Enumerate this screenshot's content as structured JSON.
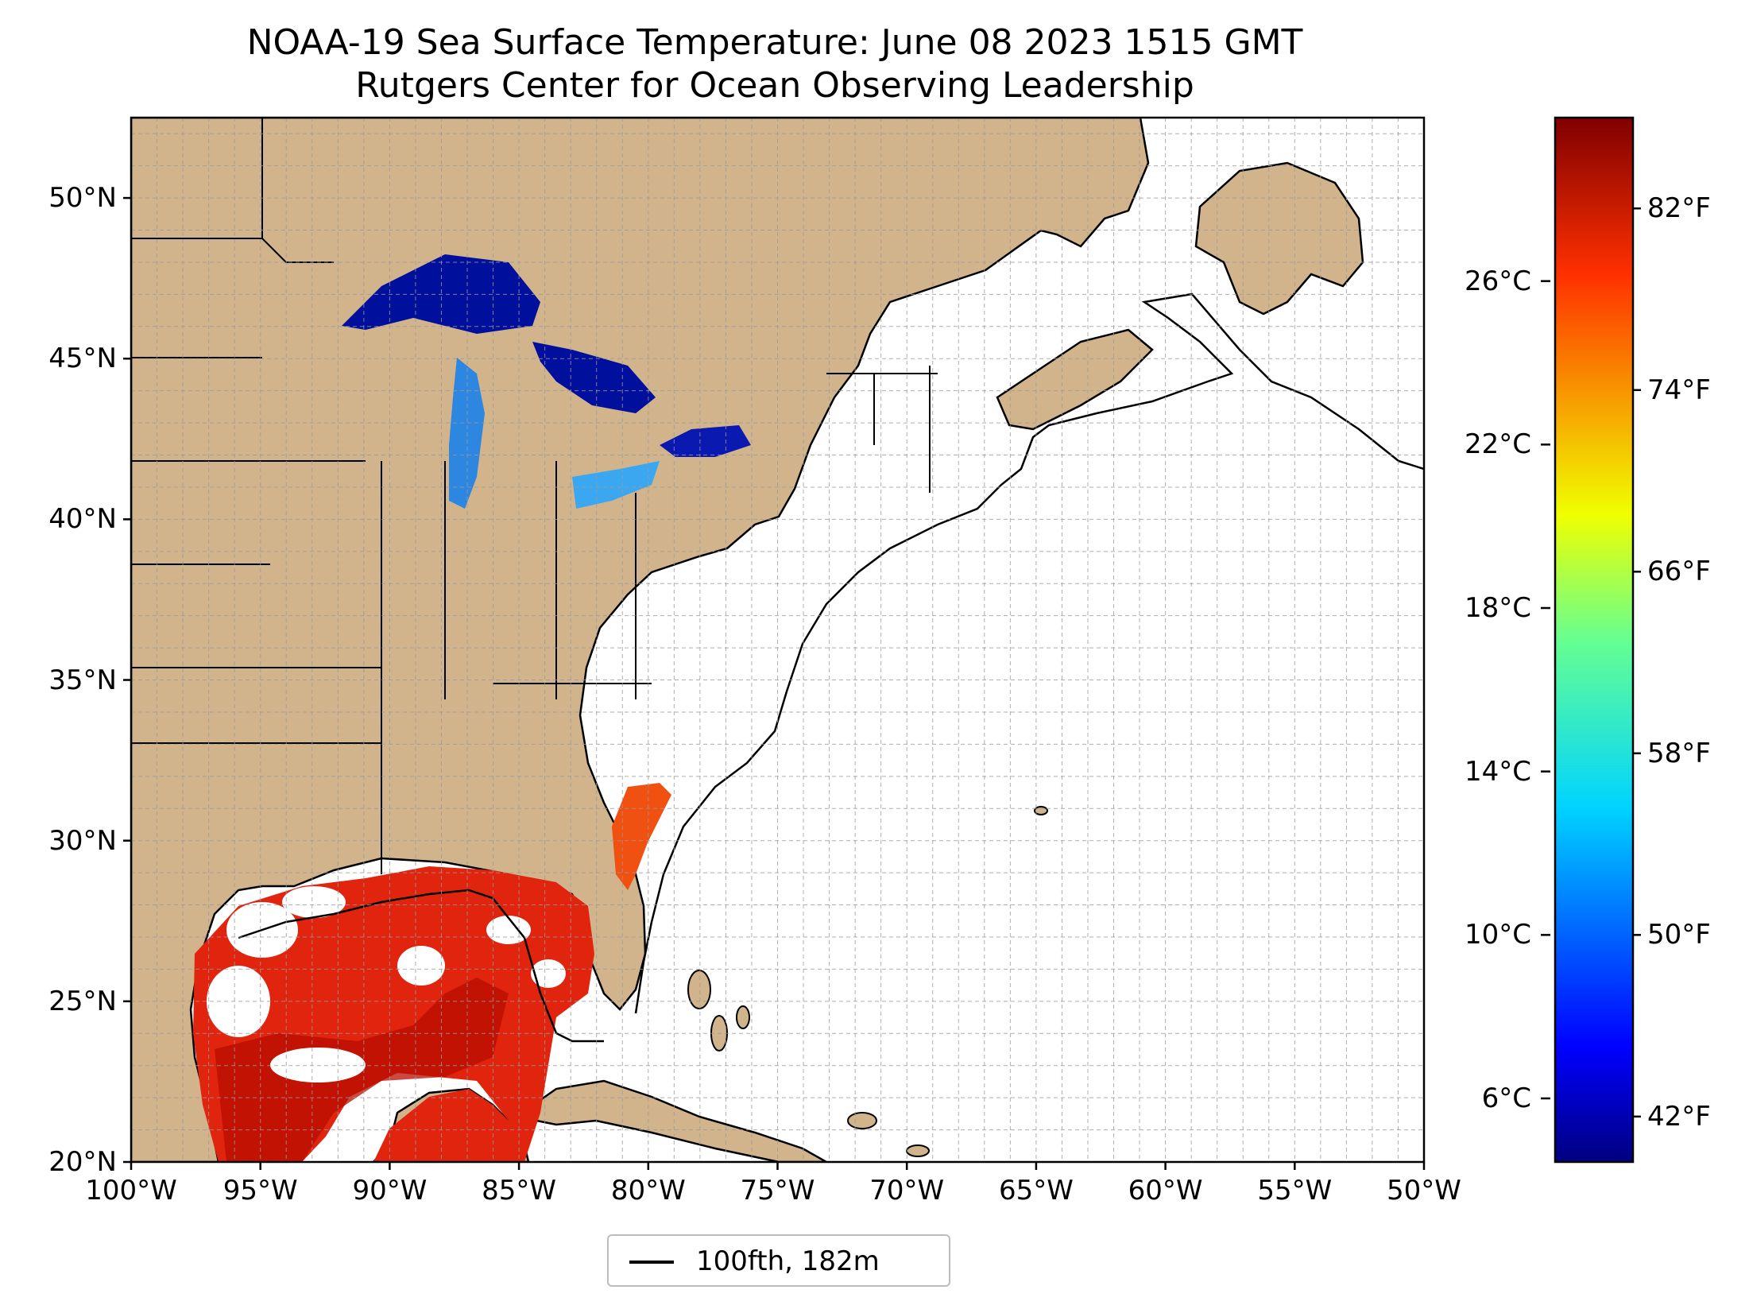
{
  "title": {
    "line1": "NOAA-19 Sea Surface Temperature: June 08 2023 1515 GMT",
    "line2": "Rutgers Center for Ocean Observing Leadership"
  },
  "map": {
    "extent": {
      "lon": [
        -100,
        -50
      ],
      "lat": [
        20,
        52.5
      ]
    },
    "lat_ticks": [
      {
        "value": 20,
        "label": "20°N"
      },
      {
        "value": 25,
        "label": "25°N"
      },
      {
        "value": 30,
        "label": "30°N"
      },
      {
        "value": 35,
        "label": "35°N"
      },
      {
        "value": 40,
        "label": "40°N"
      },
      {
        "value": 45,
        "label": "45°N"
      },
      {
        "value": 50,
        "label": "50°N"
      }
    ],
    "lon_ticks": [
      {
        "value": -100,
        "label": "100°W"
      },
      {
        "value": -95,
        "label": "95°W"
      },
      {
        "value": -90,
        "label": "90°W"
      },
      {
        "value": -85,
        "label": "85°W"
      },
      {
        "value": -80,
        "label": "80°W"
      },
      {
        "value": -75,
        "label": "75°W"
      },
      {
        "value": -70,
        "label": "70°W"
      },
      {
        "value": -65,
        "label": "65°W"
      },
      {
        "value": -60,
        "label": "60°W"
      },
      {
        "value": -55,
        "label": "55°W"
      },
      {
        "value": -50,
        "label": "50°W"
      }
    ],
    "grid": "dashed, 1 degree",
    "land_color": "#d2b48c",
    "water_color": "#ffffff",
    "inland_water_color": "#94b4e0"
  },
  "colorbar": {
    "colormap": "jet",
    "range_f": [
      40,
      86
    ],
    "celsius_ticks": [
      {
        "value": 6,
        "label": "6°C"
      },
      {
        "value": 10,
        "label": "10°C"
      },
      {
        "value": 14,
        "label": "14°C"
      },
      {
        "value": 18,
        "label": "18°C"
      },
      {
        "value": 22,
        "label": "22°C"
      },
      {
        "value": 26,
        "label": "26°C"
      }
    ],
    "fahrenheit_ticks": [
      {
        "value": 42,
        "label": "42°F"
      },
      {
        "value": 50,
        "label": "50°F"
      },
      {
        "value": 58,
        "label": "58°F"
      },
      {
        "value": 66,
        "label": "66°F"
      },
      {
        "value": 74,
        "label": "74°F"
      },
      {
        "value": 82,
        "label": "82°F"
      }
    ]
  },
  "legend": {
    "label": "100fth, 182m",
    "placement": "bottom-center"
  }
}
